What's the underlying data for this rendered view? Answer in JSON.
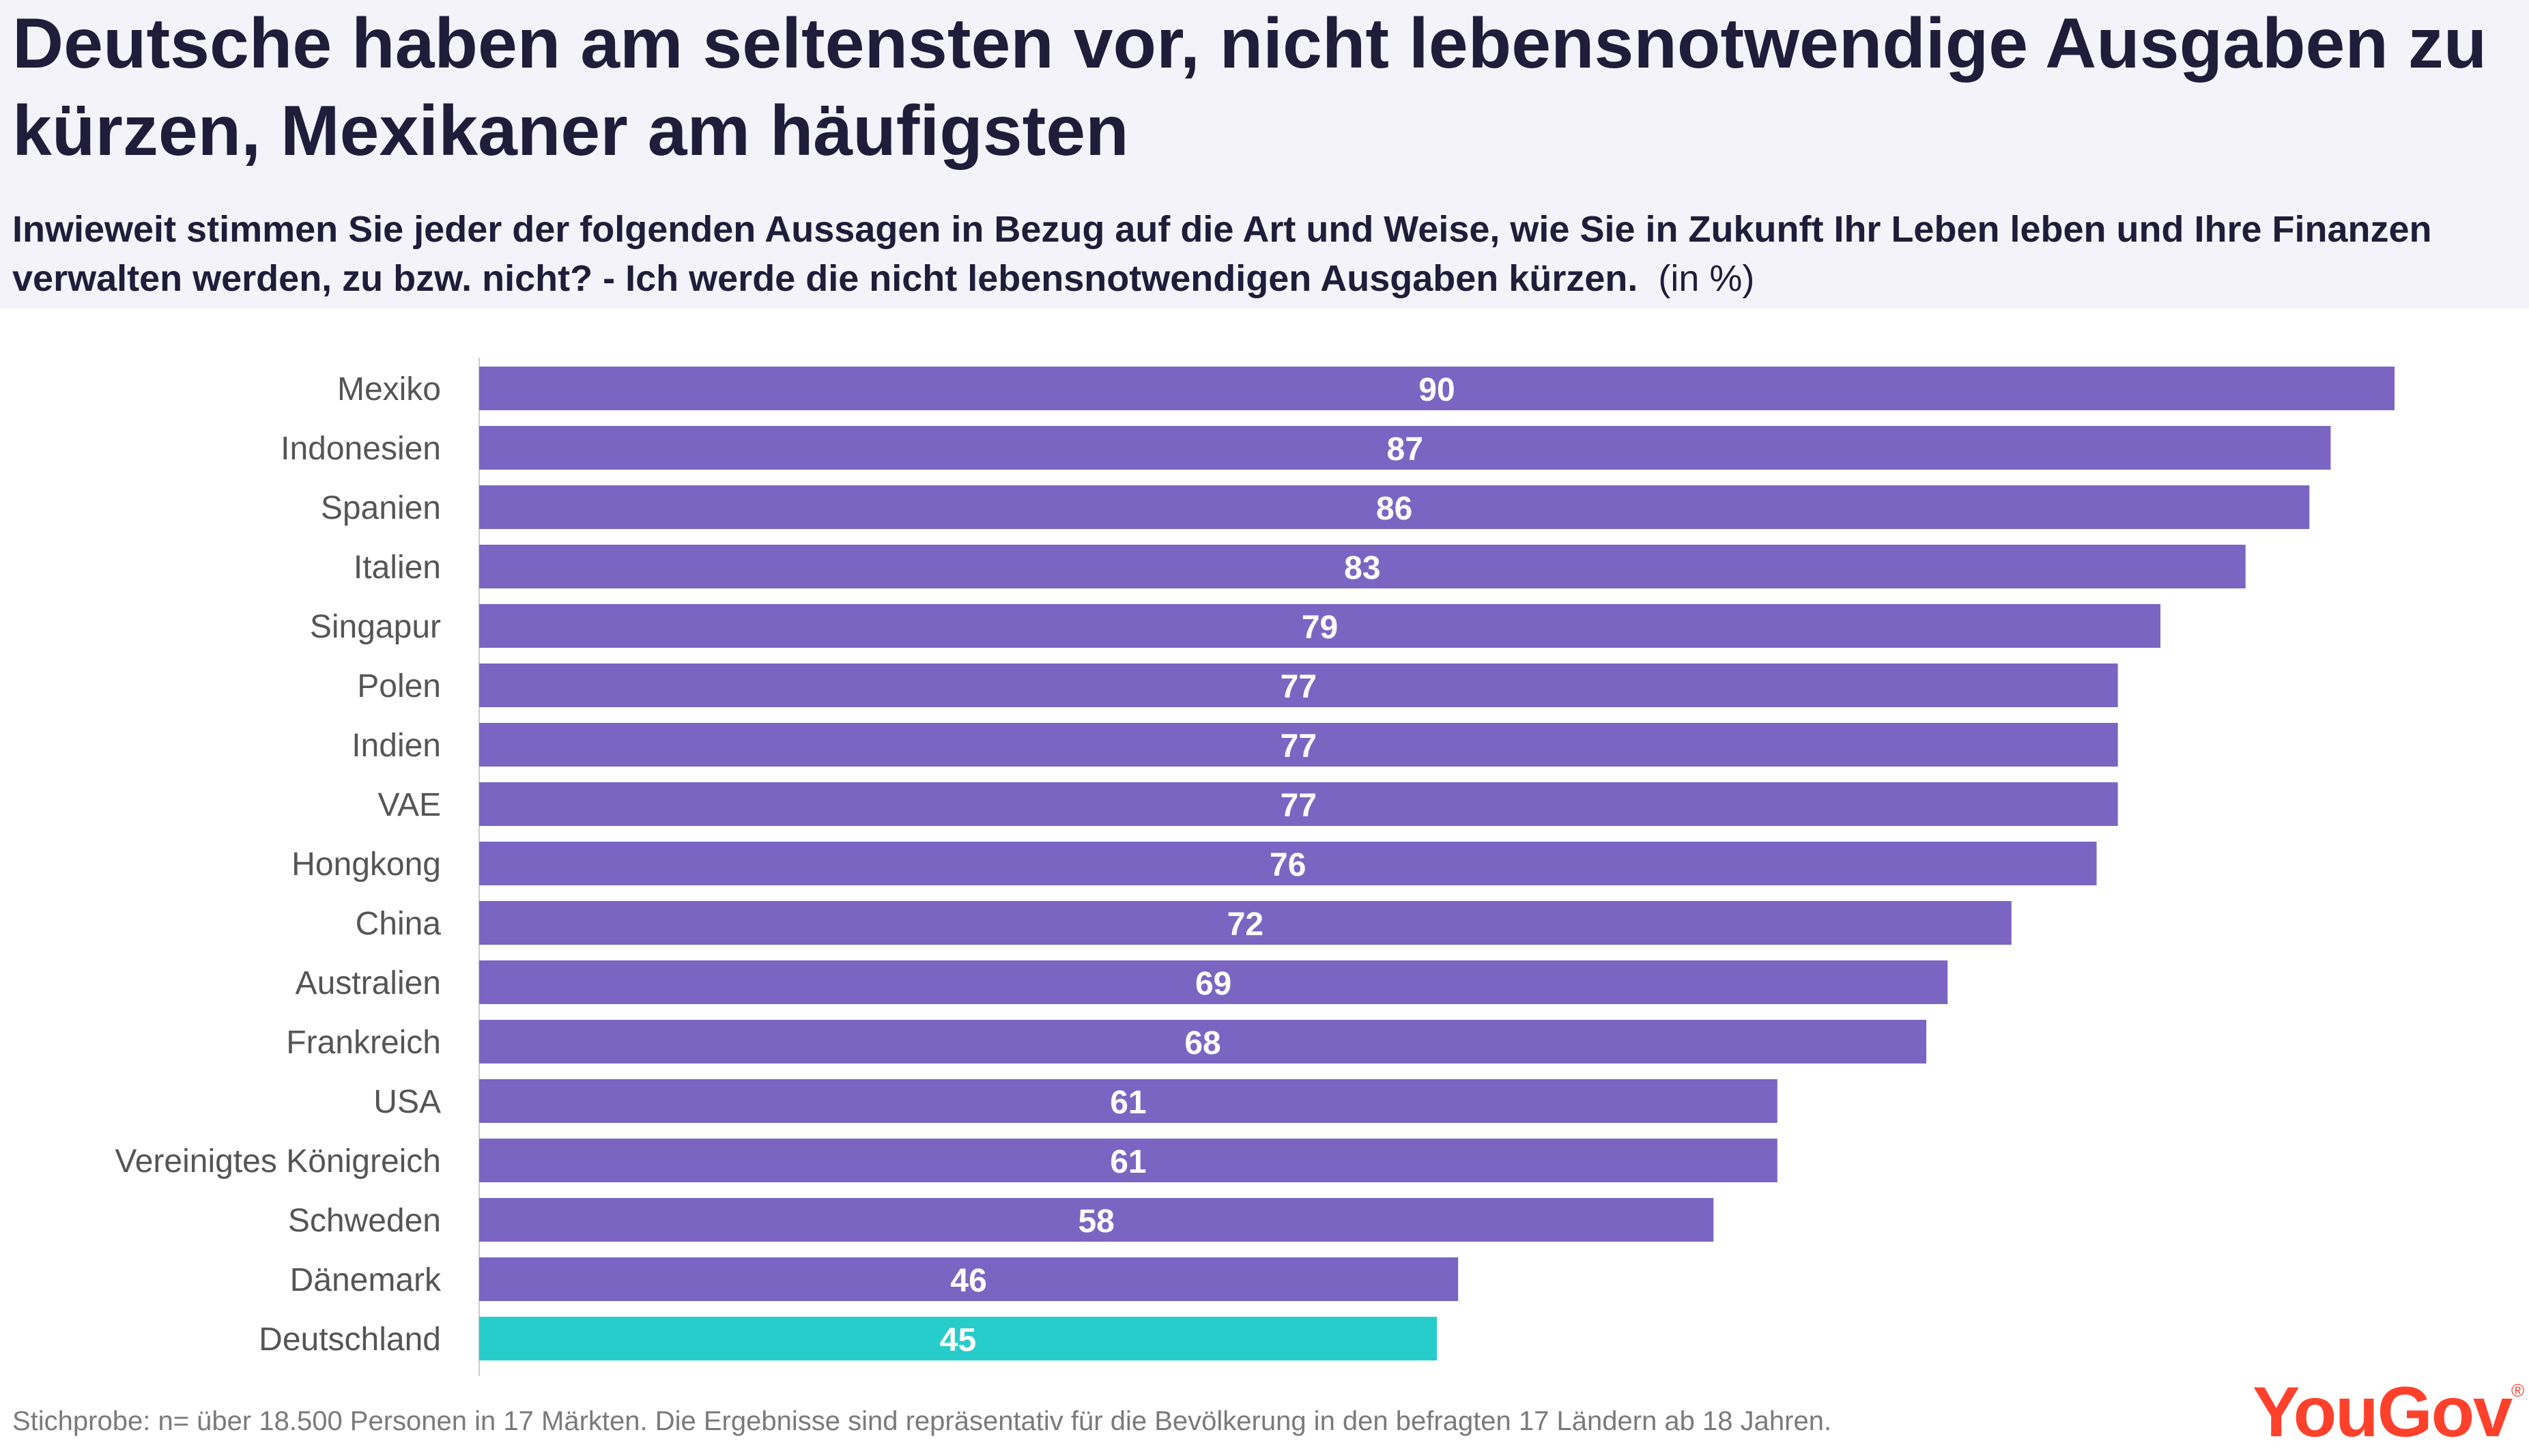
{
  "header": {
    "title": "Deutsche haben am seltensten vor, nicht lebensnotwendige Ausgaben zu kürzen, Mexikaner am häufigsten",
    "subtitle": "Inwieweit stimmen Sie jeder der folgenden Aussagen in Bezug auf die Art und Weise, wie Sie in Zukunft Ihr Leben leben und Ihre Finanzen verwalten werden, zu bzw. nicht? - Ich werde die nicht lebensnotwendigen Ausgaben kürzen.",
    "unit": "(in %)"
  },
  "chart_data": {
    "type": "bar",
    "orientation": "horizontal",
    "categories": [
      "Mexiko",
      "Indonesien",
      "Spanien",
      "Italien",
      "Singapur",
      "Polen",
      "Indien",
      "VAE",
      "Hongkong",
      "China",
      "Australien",
      "Frankreich",
      "USA",
      "Vereinigtes Königreich",
      "Schweden",
      "Dänemark",
      "Deutschland"
    ],
    "values": [
      90,
      87,
      86,
      83,
      79,
      77,
      77,
      77,
      76,
      72,
      69,
      68,
      61,
      61,
      58,
      46,
      45
    ],
    "highlight": "Deutschland",
    "colors": {
      "default": "#7b65c2",
      "highlight": "#27cdca",
      "label": "#ffffff",
      "category_text": "#555555",
      "axis": "#cccccc"
    },
    "xlim": [
      0,
      90
    ],
    "data_labels": true,
    "grid": false
  },
  "footer": {
    "note": "Stichprobe: n= über 18.500 Personen in 17 Märkten. Die Ergebnisse sind repräsentativ für die Bevölkerung in den befragten 17 Ländern ab 18 Jahren."
  },
  "brand": {
    "logo_text": "YouGov",
    "logo_mark": "®",
    "color": "#ff412c"
  }
}
